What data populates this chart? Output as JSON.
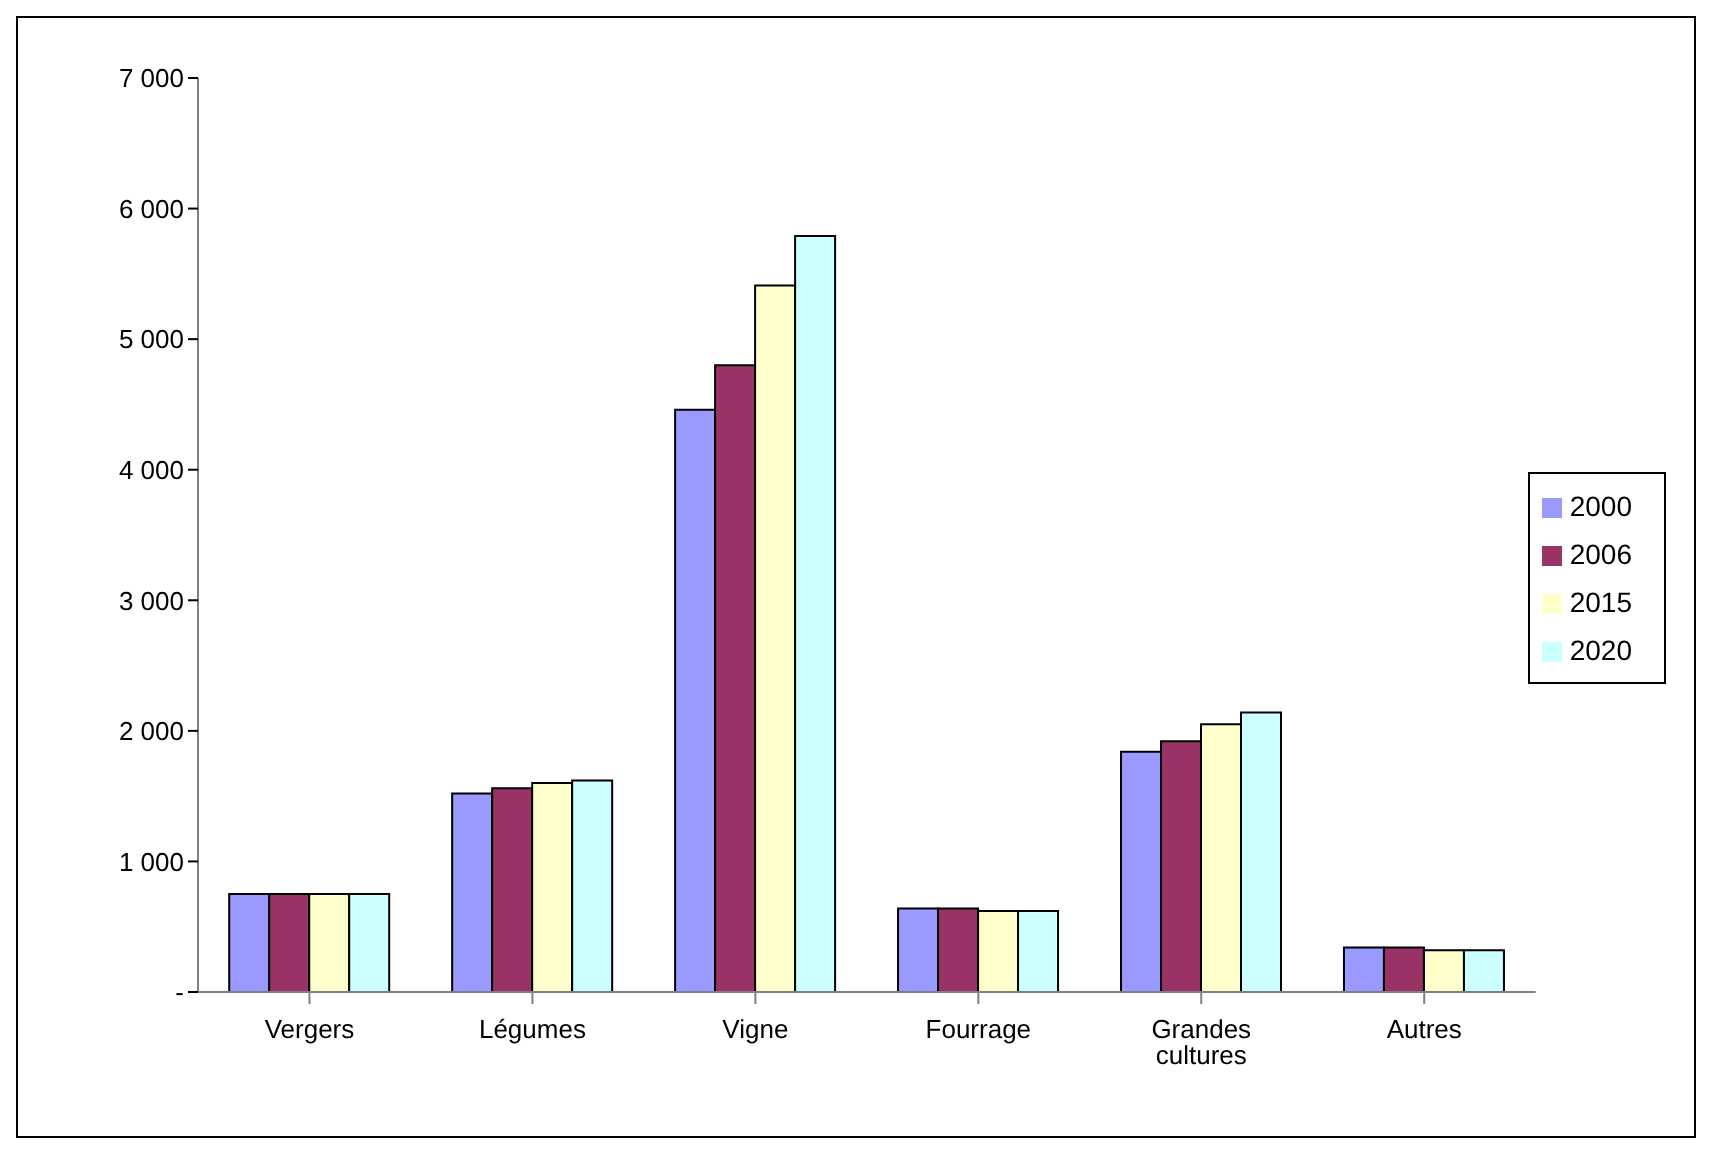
{
  "chart_data": {
    "type": "bar",
    "categories": [
      "Vergers",
      "Légumes",
      "Vigne",
      "Fourrage",
      "Grandes cultures",
      "Autres"
    ],
    "series": [
      {
        "name": "2000",
        "color": "#9999ff",
        "values": [
          750,
          1520,
          4460,
          640,
          1840,
          340
        ]
      },
      {
        "name": "2006",
        "color": "#993366",
        "values": [
          750,
          1560,
          4800,
          640,
          1920,
          340
        ]
      },
      {
        "name": "2015",
        "color": "#ffffcc",
        "values": [
          750,
          1600,
          5410,
          620,
          2050,
          320
        ]
      },
      {
        "name": "2020",
        "color": "#ccffff",
        "values": [
          750,
          1620,
          5790,
          620,
          2140,
          320
        ]
      }
    ],
    "ylim": [
      0,
      7000
    ],
    "yticks": [
      {
        "value": 0,
        "label": "-"
      },
      {
        "value": 1000,
        "label": "1 000"
      },
      {
        "value": 2000,
        "label": "2 000"
      },
      {
        "value": 3000,
        "label": "3 000"
      },
      {
        "value": 4000,
        "label": "4 000"
      },
      {
        "value": 5000,
        "label": "5 000"
      },
      {
        "value": 6000,
        "label": "6 000"
      },
      {
        "value": 7000,
        "label": "7 000"
      }
    ],
    "grid": false,
    "legend": "right"
  }
}
